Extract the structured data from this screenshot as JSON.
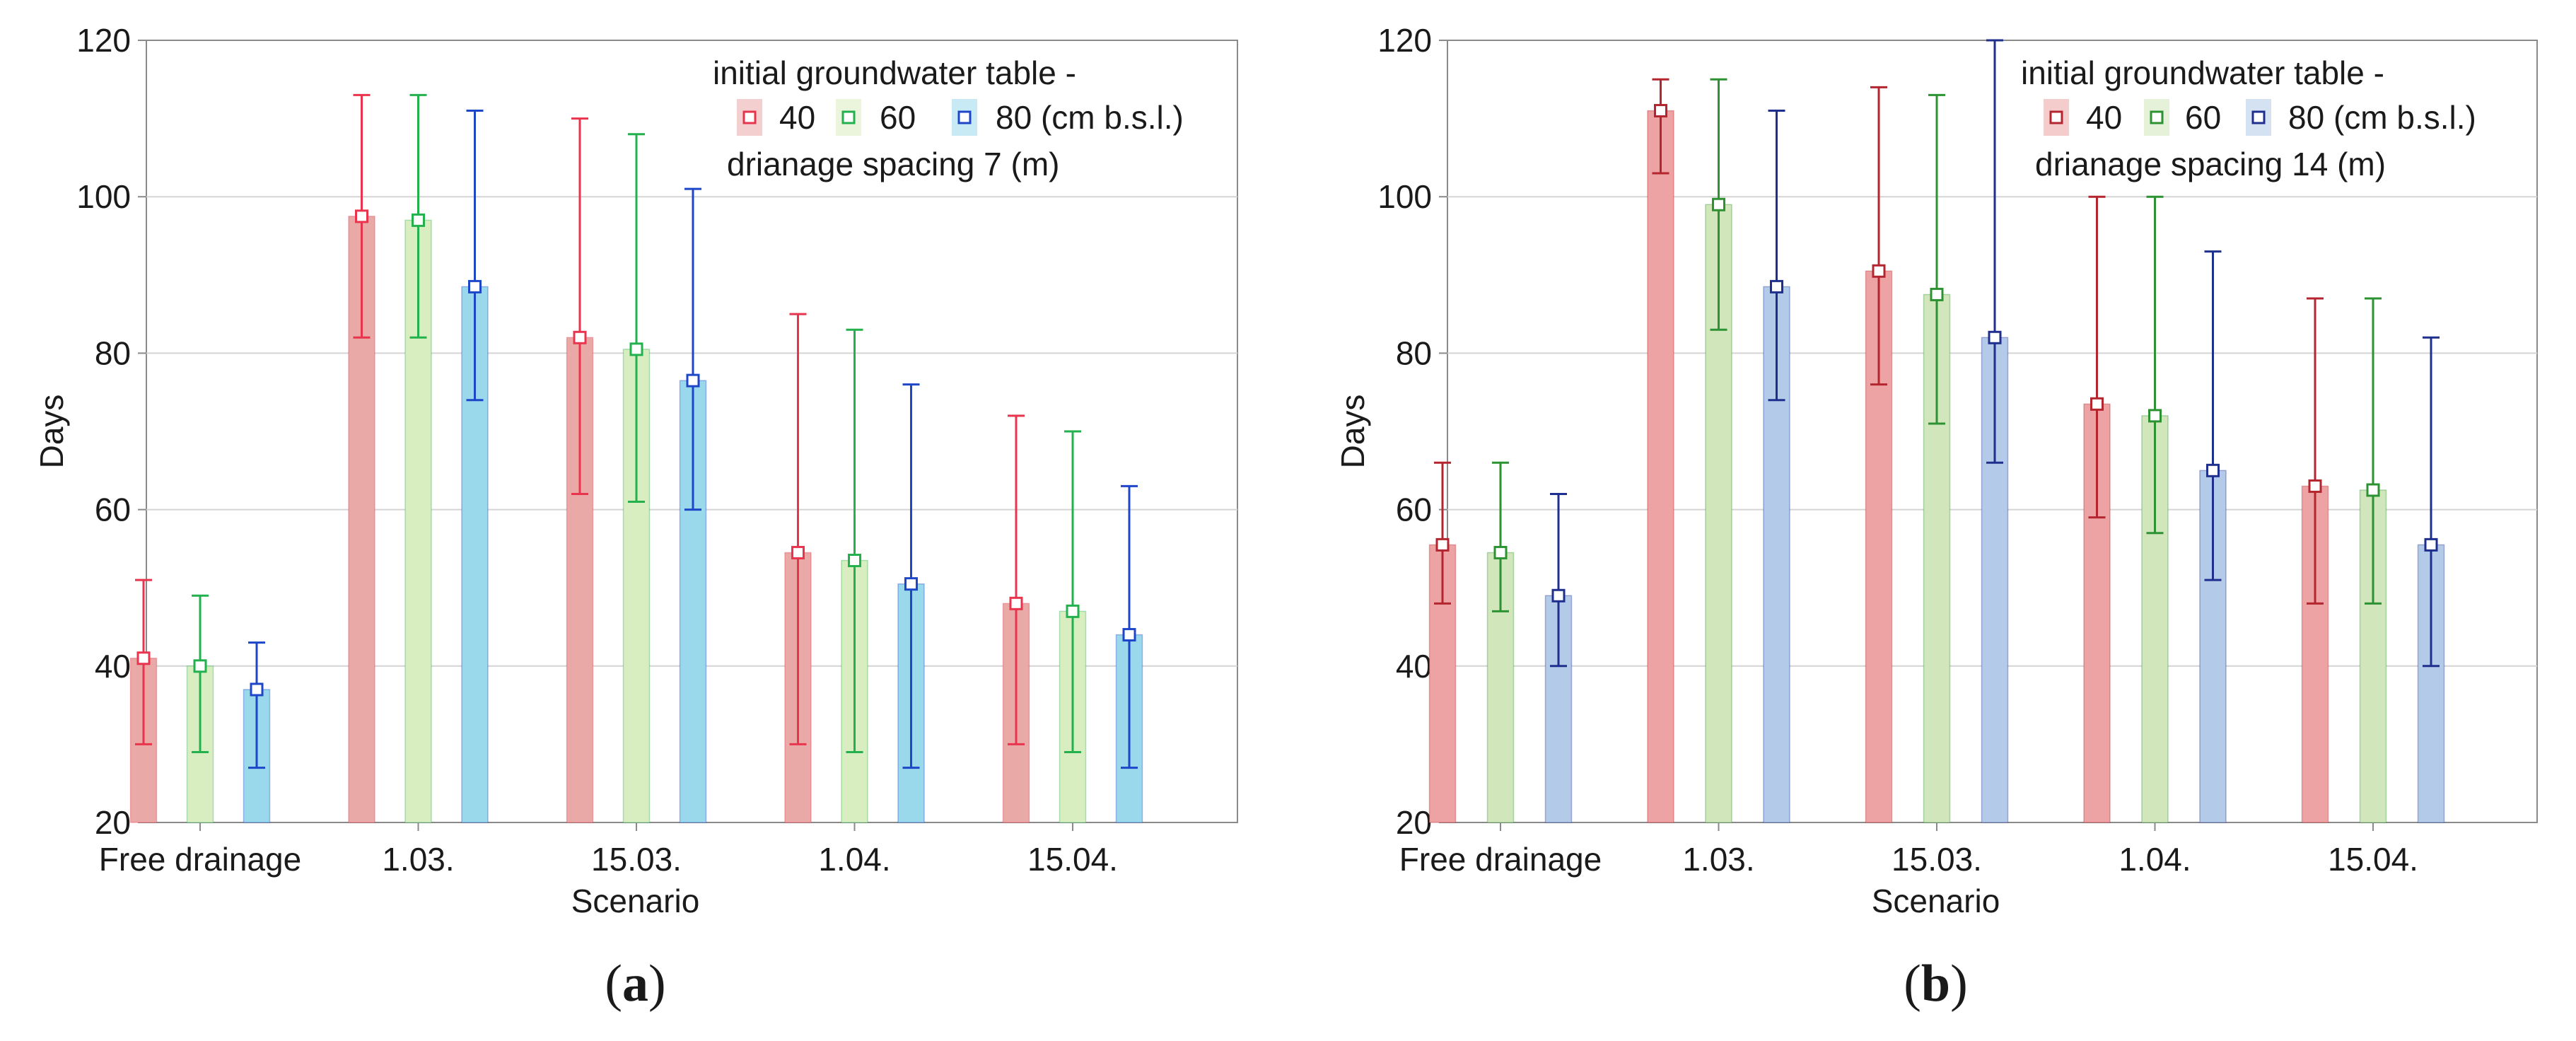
{
  "chart_data": [
    {
      "type": "bar",
      "panel_label": "a",
      "categories": [
        "Free drainage",
        "1.03.",
        "15.03.",
        "1.04.",
        "15.04."
      ],
      "xlabel": "Scenario",
      "ylabel": "Days",
      "ylim": [
        20,
        120
      ],
      "yticks": [
        "20",
        "40",
        "60",
        "80",
        "100",
        "120"
      ],
      "grid": true,
      "legend": {
        "title": "initial groundwater table -",
        "entries": [
          "40",
          "60",
          "80 (cm b.s.l.)"
        ],
        "subtitle": "drianage spacing 7 (m)",
        "position": "top-right"
      },
      "series": [
        {
          "name": "40",
          "bar_color": "#e9a9a7",
          "err_color": "#e8354d",
          "values": [
            41,
            97.5,
            82,
            54.5,
            48
          ],
          "err_low": [
            30,
            82,
            62,
            30,
            30
          ],
          "err_high": [
            51,
            113,
            110,
            85,
            72
          ]
        },
        {
          "name": "60",
          "bar_color": "#d8edc0",
          "err_color": "#22b14c",
          "values": [
            40,
            97,
            80.5,
            53.5,
            47
          ],
          "err_low": [
            29,
            82,
            61,
            29,
            29
          ],
          "err_high": [
            49,
            113,
            108,
            83,
            70
          ]
        },
        {
          "name": "80",
          "bar_color": "#9ad8ec",
          "err_color": "#1e46c8",
          "values": [
            37,
            88.5,
            76.5,
            50.5,
            44
          ],
          "err_low": [
            27,
            74,
            60,
            27,
            27
          ],
          "err_high": [
            43,
            111,
            101,
            76,
            63
          ]
        }
      ]
    },
    {
      "type": "bar",
      "panel_label": "b",
      "categories": [
        "Free drainage",
        "1.03.",
        "15.03.",
        "1.04.",
        "15.04."
      ],
      "xlabel": "Scenario",
      "ylabel": "Days",
      "ylim": [
        20,
        120
      ],
      "yticks": [
        "20",
        "40",
        "60",
        "80",
        "100",
        "120"
      ],
      "grid": true,
      "legend": {
        "title": "initial groundwater table -",
        "entries": [
          "40",
          "60",
          "80 (cm b.s.l.)"
        ],
        "subtitle": "drianage spacing 14 (m)",
        "position": "top-right"
      },
      "series": [
        {
          "name": "40",
          "bar_color": "#eda3a3",
          "err_color": "#b3262f",
          "values": [
            55.5,
            111,
            90.5,
            73.5,
            63
          ],
          "err_low": [
            48,
            103,
            76,
            59,
            48
          ],
          "err_high": [
            66,
            115,
            114,
            100,
            87
          ]
        },
        {
          "name": "60",
          "bar_color": "#d2e6bc",
          "err_color": "#2c9232",
          "values": [
            54.5,
            99,
            87.5,
            72,
            62.5
          ],
          "err_low": [
            47,
            83,
            71,
            57,
            48
          ],
          "err_high": [
            66,
            115,
            113,
            100,
            87
          ]
        },
        {
          "name": "80",
          "bar_color": "#b3cbe8",
          "err_color": "#1f2f8e",
          "values": [
            49,
            88.5,
            82,
            65,
            55.5
          ],
          "err_low": [
            40,
            74,
            66,
            51,
            40
          ],
          "err_high": [
            62,
            111,
            120,
            93,
            82
          ]
        }
      ]
    }
  ]
}
